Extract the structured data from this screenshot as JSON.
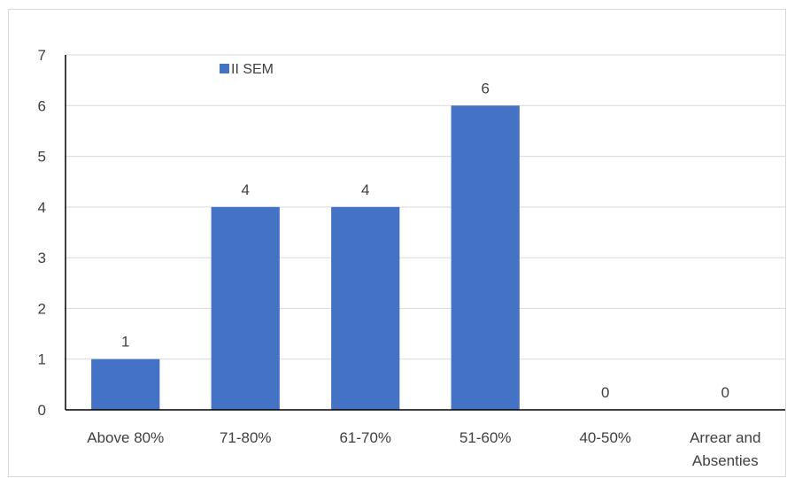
{
  "chart_data": {
    "type": "bar",
    "title": "",
    "xlabel": "",
    "ylabel": "",
    "categories": [
      "Above 80%",
      "71-80%",
      "61-70%",
      "51-60%",
      "40-50%",
      "Arrear and Absenties"
    ],
    "series": [
      {
        "name": "II SEM",
        "values": [
          1,
          4,
          4,
          6,
          0,
          0
        ],
        "color": "#4472c4"
      }
    ],
    "ylim": [
      0,
      7
    ],
    "yticks": [
      0,
      1,
      2,
      3,
      4,
      5,
      6,
      7
    ],
    "grid": true,
    "legend_position": "top-left",
    "data_labels": true,
    "colors": {
      "bar": "#4472c4",
      "grid": "#d9d9d9",
      "axis": "#000000",
      "text": "#404040"
    }
  }
}
